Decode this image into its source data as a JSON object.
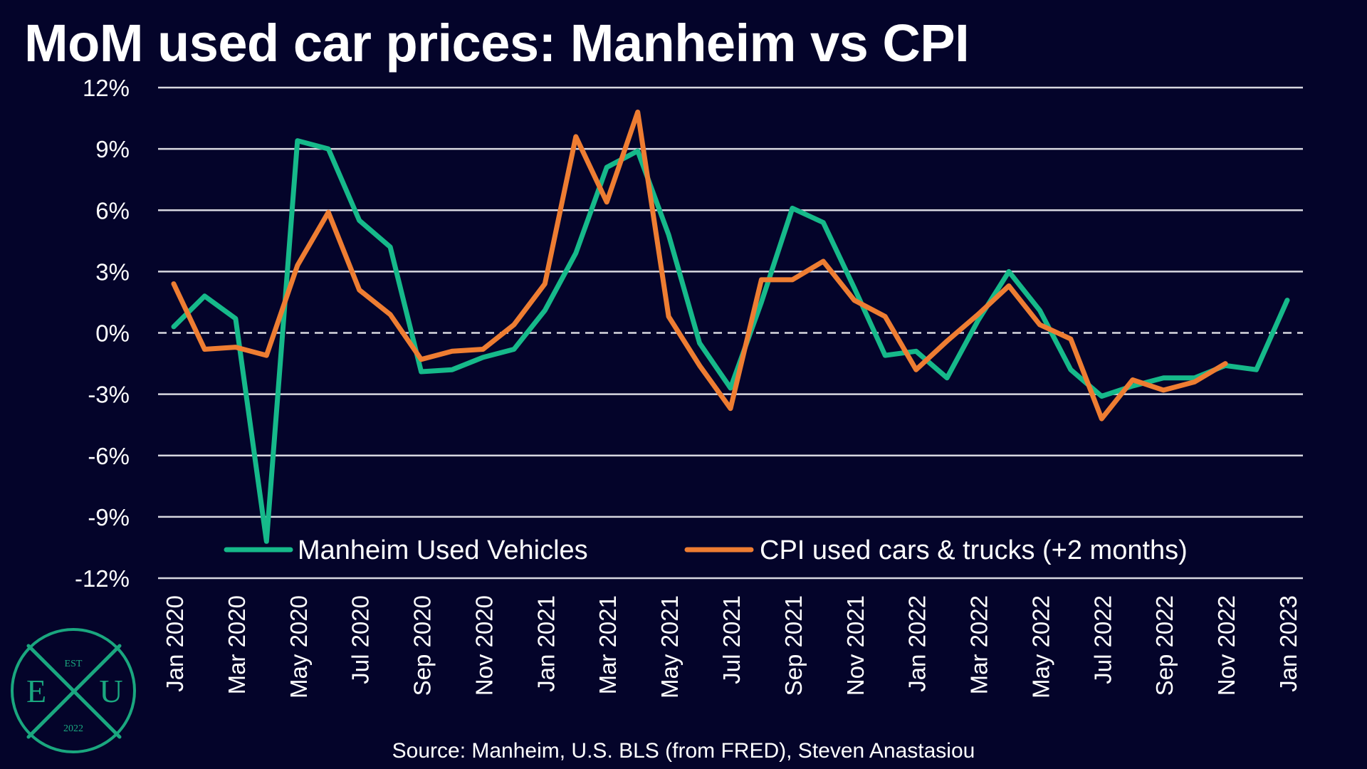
{
  "title": "MoM used car prices: Manheim vs CPI",
  "source": "Source: Manheim, U.S. BLS (from FRED), Steven Anastasiou",
  "logo": {
    "top": "EST",
    "left": "E",
    "right": "U",
    "bottom": "2022"
  },
  "colors": {
    "background": "#04042a",
    "manheim": "#16b98a",
    "cpi": "#ee7d32",
    "grid": "#d8d8e0",
    "logo": "#1aa77f"
  },
  "chart_data": {
    "type": "line",
    "title": "MoM used car prices: Manheim vs CPI",
    "x": [
      "Jan 2020",
      "Feb 2020",
      "Mar 2020",
      "Apr 2020",
      "May 2020",
      "Jun 2020",
      "Jul 2020",
      "Aug 2020",
      "Sep 2020",
      "Oct 2020",
      "Nov 2020",
      "Dec 2020",
      "Jan 2021",
      "Feb 2021",
      "Mar 2021",
      "Apr 2021",
      "May 2021",
      "Jun 2021",
      "Jul 2021",
      "Aug 2021",
      "Sep 2021",
      "Oct 2021",
      "Nov 2021",
      "Dec 2021",
      "Jan 2022",
      "Feb 2022",
      "Mar 2022",
      "Apr 2022",
      "May 2022",
      "Jun 2022",
      "Jul 2022",
      "Aug 2022",
      "Sep 2022",
      "Oct 2022",
      "Nov 2022",
      "Dec 2022",
      "Jan 2023"
    ],
    "x_tick_labels": [
      "Jan 2020",
      "Mar 2020",
      "May 2020",
      "Jul 2020",
      "Sep 2020",
      "Nov 2020",
      "Jan 2021",
      "Mar 2021",
      "May 2021",
      "Jul 2021",
      "Sep 2021",
      "Nov 2021",
      "Jan 2022",
      "Mar 2022",
      "May 2022",
      "Jul 2022",
      "Sep 2022",
      "Nov 2022",
      "Jan 2023"
    ],
    "y_tick_labels": [
      "12%",
      "9%",
      "6%",
      "3%",
      "0%",
      "-3%",
      "-6%",
      "-9%",
      "-12%"
    ],
    "y_ticks": [
      12,
      9,
      6,
      3,
      0,
      -3,
      -6,
      -9,
      -12
    ],
    "ylim": [
      -12,
      12
    ],
    "y_unit": "%",
    "grid": true,
    "zero_line": "dashed",
    "legend_position": "bottom",
    "series": [
      {
        "name": "Manheim Used Vehicles",
        "color": "#16b98a",
        "values": [
          0.3,
          1.8,
          0.7,
          -10.2,
          9.4,
          9.0,
          5.5,
          4.2,
          -1.9,
          -1.8,
          -1.2,
          -0.8,
          1.1,
          3.9,
          8.1,
          8.9,
          4.8,
          -0.5,
          -2.7,
          1.5,
          6.1,
          5.4,
          2.2,
          -1.1,
          -0.9,
          -2.2,
          0.6,
          3.0,
          1.1,
          -1.8,
          -3.1,
          -2.6,
          -2.2,
          -2.2,
          -1.6,
          -1.8,
          1.6
        ]
      },
      {
        "name": "CPI used cars & trucks (+2 months)",
        "color": "#ee7d32",
        "values": [
          2.4,
          -0.8,
          -0.7,
          -1.1,
          3.3,
          5.9,
          2.1,
          0.9,
          -1.3,
          -0.9,
          -0.8,
          0.4,
          2.4,
          9.6,
          6.4,
          10.8,
          0.8,
          -1.6,
          -3.7,
          2.6,
          2.6,
          3.5,
          1.6,
          0.8,
          -1.8,
          -0.4,
          0.9,
          2.3,
          0.4,
          -0.3,
          -4.2,
          -2.3,
          -2.8,
          -2.4,
          -1.5,
          null,
          null
        ]
      }
    ]
  }
}
